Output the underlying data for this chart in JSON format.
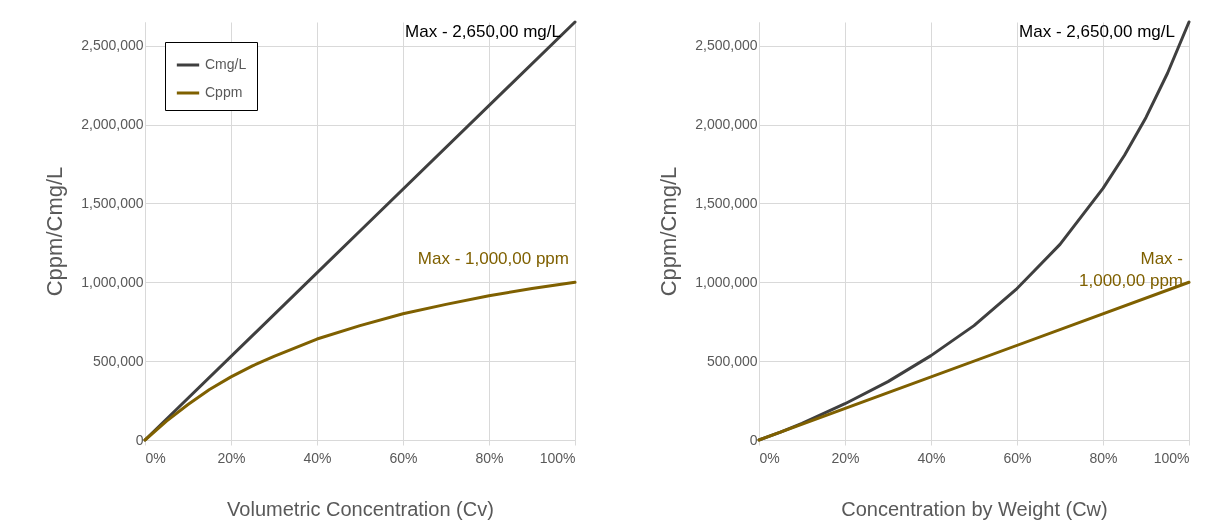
{
  "chart_data": [
    {
      "type": "line",
      "xlabel": "Volumetric Concentration (Cv)",
      "ylabel": "Cppm/Cmg/L",
      "xlim": [
        0,
        100
      ],
      "xticks": [
        {
          "value": 0,
          "label": "0%"
        },
        {
          "value": 20,
          "label": "20%"
        },
        {
          "value": 40,
          "label": "40%"
        },
        {
          "value": 60,
          "label": "60%"
        },
        {
          "value": 80,
          "label": "80%"
        },
        {
          "value": 100,
          "label": "100%"
        }
      ],
      "ylim": [
        0,
        2650000
      ],
      "yticks": [
        {
          "value": 0,
          "label": "0"
        },
        {
          "value": 500000,
          "label": "500,000"
        },
        {
          "value": 1000000,
          "label": "1,000,000"
        },
        {
          "value": 1500000,
          "label": "1,500,000"
        },
        {
          "value": 2000000,
          "label": "2,000,000"
        },
        {
          "value": 2500000,
          "label": "2,500,000"
        }
      ],
      "grid": true,
      "legend": "top left",
      "series": [
        {
          "name": "Cmg/L",
          "color": "#3f3f3f",
          "x": [
            0,
            50,
            100
          ],
          "values": [
            0,
            1325000,
            2650000
          ]
        },
        {
          "name": "Cppm",
          "color": "#7f6000",
          "x": [
            0,
            5,
            10,
            15,
            20,
            25,
            30,
            40,
            50,
            60,
            70,
            80,
            90,
            100
          ],
          "values": [
            0,
            120000,
            225000,
            320000,
            400000,
            470000,
            530000,
            640000,
            725000,
            800000,
            860000,
            915000,
            960000,
            1000000
          ]
        }
      ],
      "annotations": [
        "Max - 2,650,00 mg/L",
        "Max - 1,000,00 ppm"
      ]
    },
    {
      "type": "line",
      "xlabel": "Concentration by Weight (Cw)",
      "ylabel": "Cppm/Cmg/L",
      "xlim": [
        0,
        100
      ],
      "xticks": [
        {
          "value": 0,
          "label": "0%"
        },
        {
          "value": 20,
          "label": "20%"
        },
        {
          "value": 40,
          "label": "40%"
        },
        {
          "value": 60,
          "label": "60%"
        },
        {
          "value": 80,
          "label": "80%"
        },
        {
          "value": 100,
          "label": "100%"
        }
      ],
      "ylim": [
        0,
        2650000
      ],
      "yticks": [
        {
          "value": 0,
          "label": "0"
        },
        {
          "value": 500000,
          "label": "500,000"
        },
        {
          "value": 1000000,
          "label": "1,000,000"
        },
        {
          "value": 1500000,
          "label": "1,500,000"
        },
        {
          "value": 2000000,
          "label": "2,000,000"
        },
        {
          "value": 2500000,
          "label": "2,500,000"
        }
      ],
      "grid": true,
      "legend": "top left",
      "series": [
        {
          "name": "Cmg/L",
          "color": "#3f3f3f",
          "x": [
            0,
            5,
            10,
            20,
            30,
            40,
            50,
            60,
            70,
            80,
            85,
            90,
            95,
            100
          ],
          "values": [
            0,
            50000,
            105000,
            230000,
            370000,
            535000,
            725000,
            960000,
            1240000,
            1595000,
            1805000,
            2045000,
            2325000,
            2650000
          ]
        },
        {
          "name": "Cppm",
          "color": "#7f6000",
          "x": [
            0,
            100
          ],
          "values": [
            0,
            1000000
          ]
        }
      ],
      "annotations": [
        "Max - 2,650,00 mg/L",
        "Max -\n1,000,00 ppm"
      ]
    }
  ]
}
